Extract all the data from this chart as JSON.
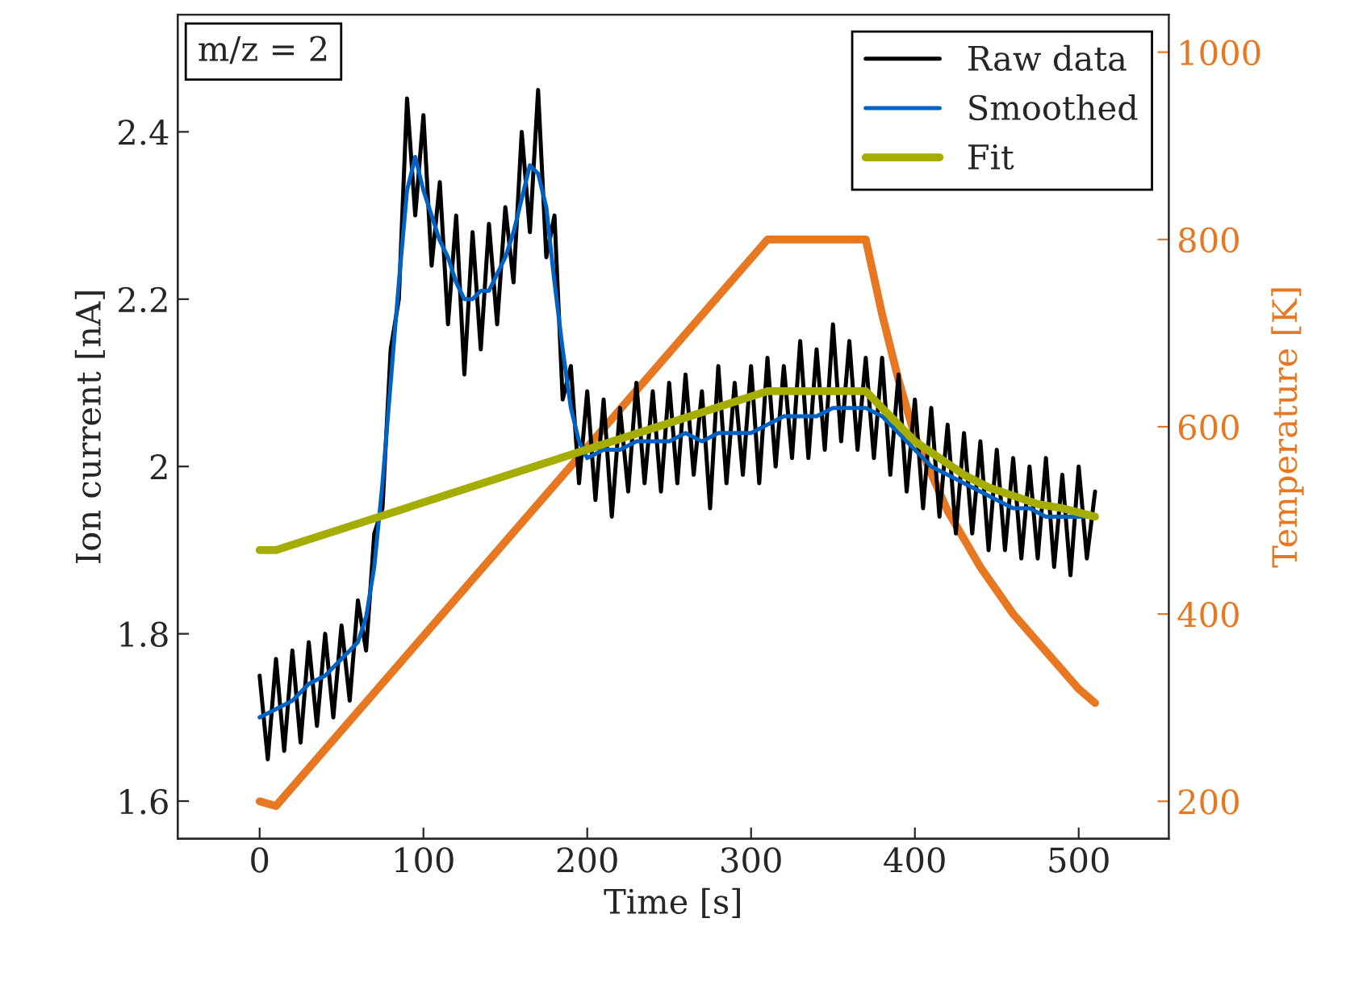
{
  "chart_data": {
    "type": "line",
    "xlabel": "Time [s]",
    "ylabel": "Ion current [nA]",
    "y2label": "Temperature [K]",
    "xlim": [
      -50,
      555
    ],
    "xticks": [
      0,
      100,
      200,
      300,
      400,
      500
    ],
    "ylim": [
      1.555,
      2.54
    ],
    "yticks": [
      1.6,
      1.8,
      2,
      2.2,
      2.4
    ],
    "y2lim": [
      160,
      1040
    ],
    "y2ticks": [
      200,
      400,
      600,
      800,
      1000
    ],
    "grid": false,
    "legend": "top right",
    "marker": "none",
    "line_style": "solid",
    "annotations": [
      "m/z = 2"
    ],
    "series": [
      {
        "name": "Raw data",
        "color": "#000000",
        "x": [
          0,
          5,
          10,
          15,
          20,
          25,
          30,
          35,
          40,
          45,
          50,
          55,
          60,
          65,
          70,
          75,
          80,
          85,
          90,
          95,
          100,
          105,
          110,
          115,
          120,
          125,
          130,
          135,
          140,
          145,
          150,
          155,
          160,
          165,
          170,
          175,
          180,
          185,
          190,
          195,
          200,
          205,
          210,
          215,
          220,
          225,
          230,
          235,
          240,
          245,
          250,
          255,
          260,
          265,
          270,
          275,
          280,
          285,
          290,
          295,
          300,
          305,
          310,
          315,
          320,
          325,
          330,
          335,
          340,
          345,
          350,
          355,
          360,
          365,
          370,
          375,
          380,
          385,
          390,
          395,
          400,
          405,
          410,
          415,
          420,
          425,
          430,
          435,
          440,
          445,
          450,
          455,
          460,
          465,
          470,
          475,
          480,
          485,
          490,
          495,
          500,
          505,
          510
        ],
        "values": [
          1.75,
          1.65,
          1.77,
          1.66,
          1.78,
          1.67,
          1.79,
          1.69,
          1.8,
          1.7,
          1.81,
          1.72,
          1.84,
          1.78,
          1.92,
          1.95,
          2.14,
          2.2,
          2.44,
          2.3,
          2.42,
          2.24,
          2.34,
          2.17,
          2.3,
          2.11,
          2.28,
          2.14,
          2.29,
          2.17,
          2.31,
          2.22,
          2.4,
          2.28,
          2.45,
          2.25,
          2.3,
          2.08,
          2.12,
          1.98,
          2.09,
          1.96,
          2.08,
          1.94,
          2.07,
          1.97,
          2.1,
          1.98,
          2.09,
          1.97,
          2.1,
          1.98,
          2.11,
          1.99,
          2.09,
          1.95,
          2.12,
          1.98,
          2.1,
          1.99,
          2.12,
          1.98,
          2.13,
          2.0,
          2.12,
          2.01,
          2.15,
          2.01,
          2.14,
          2.02,
          2.17,
          2.03,
          2.15,
          2.02,
          2.13,
          2.01,
          2.13,
          1.99,
          2.11,
          1.97,
          2.08,
          1.95,
          2.07,
          1.94,
          2.05,
          1.92,
          2.04,
          1.92,
          2.03,
          1.9,
          2.02,
          1.9,
          2.01,
          1.89,
          2.0,
          1.89,
          2.01,
          1.88,
          1.99,
          1.87,
          2.0,
          1.89,
          1.97
        ]
      },
      {
        "name": "Smoothed",
        "color": "#0062c4",
        "x": [
          0,
          10,
          20,
          30,
          40,
          50,
          60,
          65,
          70,
          75,
          80,
          85,
          90,
          95,
          100,
          105,
          110,
          115,
          120,
          125,
          130,
          135,
          140,
          145,
          150,
          155,
          160,
          165,
          170,
          175,
          180,
          185,
          190,
          195,
          200,
          210,
          220,
          230,
          240,
          250,
          260,
          270,
          280,
          290,
          300,
          310,
          320,
          330,
          340,
          350,
          360,
          370,
          380,
          390,
          400,
          410,
          420,
          430,
          440,
          450,
          460,
          470,
          480,
          490,
          500,
          510
        ],
        "values": [
          1.7,
          1.71,
          1.72,
          1.74,
          1.75,
          1.77,
          1.79,
          1.82,
          1.88,
          1.98,
          2.1,
          2.22,
          2.33,
          2.37,
          2.33,
          2.3,
          2.27,
          2.25,
          2.22,
          2.2,
          2.2,
          2.21,
          2.21,
          2.23,
          2.25,
          2.28,
          2.32,
          2.36,
          2.35,
          2.31,
          2.22,
          2.14,
          2.07,
          2.03,
          2.01,
          2.02,
          2.02,
          2.03,
          2.03,
          2.03,
          2.04,
          2.03,
          2.04,
          2.04,
          2.04,
          2.05,
          2.06,
          2.06,
          2.06,
          2.07,
          2.07,
          2.07,
          2.06,
          2.04,
          2.02,
          2.0,
          1.99,
          1.98,
          1.97,
          1.96,
          1.95,
          1.95,
          1.94,
          1.94,
          1.94,
          1.94
        ]
      },
      {
        "name": "Fit",
        "color": "#a4ad00",
        "x": [
          0,
          10,
          310,
          370,
          385,
          400,
          415,
          430,
          445,
          460,
          475,
          490,
          510
        ],
        "values": [
          1.9,
          1.9,
          2.09,
          2.09,
          2.06,
          2.03,
          2.01,
          1.99,
          1.975,
          1.965,
          1.955,
          1.95,
          1.94
        ]
      },
      {
        "color": "#e87722",
        "axis": "y2",
        "x": [
          0,
          10,
          310,
          370,
          380,
          390,
          400,
          420,
          440,
          460,
          480,
          500,
          510
        ],
        "values": [
          200,
          195,
          800,
          800,
          720,
          650,
          590,
          510,
          450,
          400,
          360,
          320,
          305
        ]
      }
    ]
  }
}
